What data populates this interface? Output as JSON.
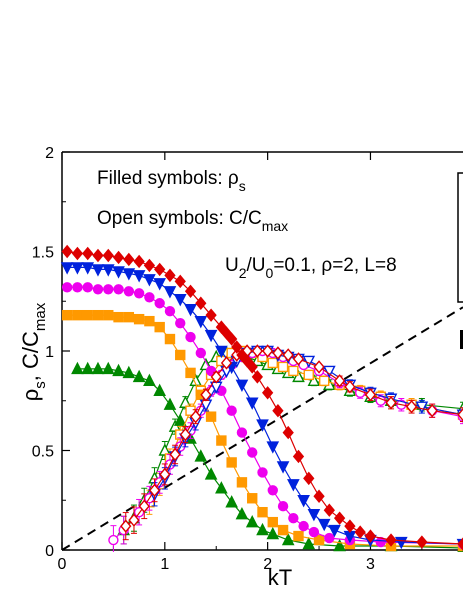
{
  "chart_data": {
    "type": "line",
    "xlabel": "kT",
    "ylabel": {
      "main": "ρ",
      "sub1": "s",
      "mid": ", C/C",
      "sub2": "max"
    },
    "xlim": [
      0,
      3.9
    ],
    "ylim": [
      0,
      2
    ],
    "xticks": [
      0,
      1,
      2,
      3
    ],
    "yticks": [
      0,
      0.5,
      1,
      1.5,
      2
    ],
    "ytick_labels": [
      "0",
      "0.5",
      "1",
      "1.5",
      "2"
    ],
    "grid": false,
    "annotations": {
      "filled": {
        "text": "Filled symbols: ρ",
        "sub": "s"
      },
      "open": {
        "text": "Open symbols: C/C",
        "sub": "max"
      },
      "params": {
        "pre": "U",
        "sub": "2",
        "mid": "/U",
        "sub2": "0",
        "post": "=0.1, ρ=2, L=8"
      }
    },
    "reference_line": {
      "style": "dashed",
      "points": [
        [
          0,
          0
        ],
        [
          3.9,
          1.22
        ]
      ]
    },
    "series": [
      {
        "color": "#dd0000",
        "marker": "diamond",
        "rho": [
          [
            0.05,
            1.5
          ],
          [
            0.15,
            1.49
          ],
          [
            0.25,
            1.49
          ],
          [
            0.35,
            1.48
          ],
          [
            0.45,
            1.48
          ],
          [
            0.55,
            1.47
          ],
          [
            0.65,
            1.46
          ],
          [
            0.75,
            1.45
          ],
          [
            0.85,
            1.43
          ],
          [
            0.95,
            1.41
          ],
          [
            1.05,
            1.38
          ],
          [
            1.15,
            1.35
          ],
          [
            1.25,
            1.3
          ],
          [
            1.35,
            1.24
          ],
          [
            1.45,
            1.18
          ],
          [
            1.55,
            1.12
          ],
          [
            1.6,
            1.09
          ],
          [
            1.65,
            1.06
          ],
          [
            1.7,
            1.02
          ],
          [
            1.75,
            0.98
          ],
          [
            1.8,
            0.95
          ],
          [
            1.85,
            0.92
          ],
          [
            1.9,
            0.87
          ],
          [
            2.0,
            0.79
          ],
          [
            2.1,
            0.7
          ],
          [
            2.2,
            0.59
          ],
          [
            2.3,
            0.47
          ],
          [
            2.4,
            0.36
          ],
          [
            2.5,
            0.27
          ],
          [
            2.6,
            0.2
          ],
          [
            2.7,
            0.16
          ],
          [
            2.8,
            0.12
          ],
          [
            2.9,
            0.09
          ],
          [
            3.0,
            0.07
          ],
          [
            3.2,
            0.05
          ],
          [
            3.5,
            0.04
          ],
          [
            3.9,
            0.03
          ]
        ],
        "c": [
          [
            0.62,
            0.12
          ],
          [
            0.7,
            0.15
          ],
          [
            0.8,
            0.22
          ],
          [
            0.9,
            0.3
          ],
          [
            1.0,
            0.38
          ],
          [
            1.1,
            0.48
          ],
          [
            1.2,
            0.58
          ],
          [
            1.3,
            0.67
          ],
          [
            1.4,
            0.78
          ],
          [
            1.5,
            0.87
          ],
          [
            1.6,
            0.94
          ],
          [
            1.7,
            0.98
          ],
          [
            1.8,
            1.0
          ],
          [
            1.9,
            1.0
          ],
          [
            2.0,
            1.0
          ],
          [
            2.1,
            0.99
          ],
          [
            2.2,
            0.98
          ],
          [
            2.3,
            0.96
          ],
          [
            2.5,
            0.92
          ],
          [
            2.7,
            0.85
          ],
          [
            2.8,
            0.82
          ],
          [
            3.0,
            0.78
          ],
          [
            3.2,
            0.74
          ],
          [
            3.4,
            0.72
          ],
          [
            3.6,
            0.7
          ],
          [
            3.9,
            0.68
          ]
        ]
      },
      {
        "color": "#0022dd",
        "marker": "triangle-down",
        "rho": [
          [
            0.05,
            1.42
          ],
          [
            0.15,
            1.42
          ],
          [
            0.25,
            1.42
          ],
          [
            0.35,
            1.41
          ],
          [
            0.45,
            1.41
          ],
          [
            0.55,
            1.4
          ],
          [
            0.65,
            1.39
          ],
          [
            0.75,
            1.38
          ],
          [
            0.85,
            1.36
          ],
          [
            0.95,
            1.34
          ],
          [
            1.05,
            1.3
          ],
          [
            1.15,
            1.26
          ],
          [
            1.25,
            1.21
          ],
          [
            1.35,
            1.15
          ],
          [
            1.45,
            1.08
          ],
          [
            1.55,
            1.0
          ],
          [
            1.65,
            0.92
          ],
          [
            1.75,
            0.83
          ],
          [
            1.85,
            0.74
          ],
          [
            1.95,
            0.63
          ],
          [
            2.05,
            0.52
          ],
          [
            2.15,
            0.42
          ],
          [
            2.25,
            0.33
          ],
          [
            2.35,
            0.25
          ],
          [
            2.45,
            0.18
          ],
          [
            2.55,
            0.13
          ],
          [
            2.65,
            0.1
          ],
          [
            2.8,
            0.07
          ],
          [
            3.0,
            0.05
          ],
          [
            3.3,
            0.04
          ],
          [
            3.9,
            0.03
          ]
        ],
        "c": [
          [
            0.9,
            0.28
          ],
          [
            1.0,
            0.36
          ],
          [
            1.1,
            0.47
          ],
          [
            1.2,
            0.56
          ],
          [
            1.3,
            0.64
          ],
          [
            1.4,
            0.73
          ],
          [
            1.5,
            0.82
          ],
          [
            1.6,
            0.9
          ],
          [
            1.7,
            0.95
          ],
          [
            1.8,
            0.99
          ],
          [
            1.9,
            1.0
          ],
          [
            2.0,
            1.0
          ],
          [
            2.1,
            0.98
          ],
          [
            2.2,
            0.97
          ],
          [
            2.3,
            0.96
          ],
          [
            2.4,
            0.95
          ],
          [
            2.6,
            0.9
          ],
          [
            2.8,
            0.83
          ],
          [
            3.0,
            0.79
          ],
          [
            3.2,
            0.76
          ],
          [
            3.5,
            0.72
          ],
          [
            3.9,
            0.68
          ]
        ]
      },
      {
        "color": "#ee00ee",
        "marker": "circle",
        "rho": [
          [
            0.05,
            1.32
          ],
          [
            0.15,
            1.32
          ],
          [
            0.25,
            1.32
          ],
          [
            0.35,
            1.31
          ],
          [
            0.45,
            1.31
          ],
          [
            0.55,
            1.31
          ],
          [
            0.65,
            1.3
          ],
          [
            0.75,
            1.29
          ],
          [
            0.85,
            1.27
          ],
          [
            0.95,
            1.24
          ],
          [
            1.05,
            1.2
          ],
          [
            1.15,
            1.14
          ],
          [
            1.25,
            1.07
          ],
          [
            1.35,
            0.99
          ],
          [
            1.45,
            0.9
          ],
          [
            1.55,
            0.8
          ],
          [
            1.65,
            0.7
          ],
          [
            1.75,
            0.59
          ],
          [
            1.85,
            0.49
          ],
          [
            1.95,
            0.39
          ],
          [
            2.05,
            0.3
          ],
          [
            2.15,
            0.22
          ],
          [
            2.25,
            0.16
          ],
          [
            2.35,
            0.12
          ],
          [
            2.45,
            0.09
          ],
          [
            2.6,
            0.06
          ],
          [
            2.8,
            0.05
          ],
          [
            3.1,
            0.04
          ],
          [
            3.9,
            0.03
          ]
        ],
        "c": [
          [
            0.5,
            0.05
          ],
          [
            0.6,
            0.1
          ],
          [
            0.75,
            0.19
          ],
          [
            0.85,
            0.26
          ],
          [
            0.95,
            0.34
          ],
          [
            1.05,
            0.43
          ],
          [
            1.15,
            0.52
          ],
          [
            1.25,
            0.6
          ],
          [
            1.35,
            0.7
          ],
          [
            1.45,
            0.8
          ],
          [
            1.55,
            0.88
          ],
          [
            1.65,
            0.93
          ],
          [
            1.75,
            0.97
          ],
          [
            1.85,
            0.99
          ],
          [
            1.95,
            1.0
          ],
          [
            2.05,
            0.99
          ],
          [
            2.15,
            0.97
          ],
          [
            2.25,
            0.95
          ],
          [
            2.35,
            0.93
          ],
          [
            2.5,
            0.9
          ],
          [
            2.7,
            0.84
          ],
          [
            2.9,
            0.79
          ],
          [
            3.1,
            0.75
          ],
          [
            3.3,
            0.73
          ],
          [
            3.6,
            0.7
          ],
          [
            3.9,
            0.67
          ]
        ]
      },
      {
        "color": "#ff9900",
        "marker": "square",
        "rho": [
          [
            0.05,
            1.18
          ],
          [
            0.15,
            1.18
          ],
          [
            0.25,
            1.18
          ],
          [
            0.35,
            1.18
          ],
          [
            0.45,
            1.18
          ],
          [
            0.55,
            1.17
          ],
          [
            0.65,
            1.17
          ],
          [
            0.75,
            1.16
          ],
          [
            0.85,
            1.15
          ],
          [
            0.95,
            1.12
          ],
          [
            1.05,
            1.06
          ],
          [
            1.15,
            0.98
          ],
          [
            1.25,
            0.89
          ],
          [
            1.35,
            0.78
          ],
          [
            1.45,
            0.67
          ],
          [
            1.55,
            0.55
          ],
          [
            1.65,
            0.44
          ],
          [
            1.75,
            0.34
          ],
          [
            1.85,
            0.26
          ],
          [
            1.95,
            0.19
          ],
          [
            2.05,
            0.14
          ],
          [
            2.15,
            0.1
          ],
          [
            2.3,
            0.07
          ],
          [
            2.5,
            0.05
          ],
          [
            2.8,
            0.03
          ],
          [
            3.2,
            0.02
          ],
          [
            3.9,
            0.02
          ]
        ],
        "c": [
          [
            0.85,
            0.24
          ],
          [
            0.95,
            0.33
          ],
          [
            1.05,
            0.46
          ],
          [
            1.15,
            0.58
          ],
          [
            1.25,
            0.7
          ],
          [
            1.35,
            0.8
          ],
          [
            1.45,
            0.88
          ],
          [
            1.55,
            0.95
          ],
          [
            1.65,
            0.99
          ],
          [
            1.75,
            1.0
          ],
          [
            1.85,
            0.99
          ],
          [
            1.95,
            0.97
          ],
          [
            2.05,
            0.94
          ],
          [
            2.15,
            0.92
          ],
          [
            2.25,
            0.9
          ],
          [
            2.4,
            0.88
          ],
          [
            2.55,
            0.85
          ],
          [
            2.7,
            0.83
          ],
          [
            2.9,
            0.8
          ],
          [
            3.1,
            0.77
          ],
          [
            3.4,
            0.73
          ],
          [
            3.9,
            0.68
          ]
        ]
      },
      {
        "color": "#008800",
        "marker": "triangle-up",
        "rho": [
          [
            0.15,
            0.91
          ],
          [
            0.25,
            0.91
          ],
          [
            0.35,
            0.91
          ],
          [
            0.45,
            0.91
          ],
          [
            0.55,
            0.9
          ],
          [
            0.65,
            0.89
          ],
          [
            0.75,
            0.87
          ],
          [
            0.85,
            0.85
          ],
          [
            0.95,
            0.8
          ],
          [
            1.05,
            0.73
          ],
          [
            1.15,
            0.65
          ],
          [
            1.25,
            0.56
          ],
          [
            1.35,
            0.47
          ],
          [
            1.45,
            0.38
          ],
          [
            1.55,
            0.31
          ],
          [
            1.65,
            0.24
          ],
          [
            1.75,
            0.18
          ],
          [
            1.85,
            0.14
          ],
          [
            1.95,
            0.1
          ],
          [
            2.05,
            0.08
          ],
          [
            2.2,
            0.05
          ],
          [
            2.4,
            0.03
          ],
          [
            2.7,
            0.02
          ],
          [
            3.2,
            0.02
          ],
          [
            3.9,
            0.01
          ]
        ],
        "c": [
          [
            0.6,
            0.1
          ],
          [
            0.7,
            0.16
          ],
          [
            0.8,
            0.25
          ],
          [
            0.9,
            0.36
          ],
          [
            1.0,
            0.5
          ],
          [
            1.1,
            0.62
          ],
          [
            1.2,
            0.74
          ],
          [
            1.3,
            0.85
          ],
          [
            1.4,
            0.93
          ],
          [
            1.5,
            0.97
          ],
          [
            1.6,
            0.99
          ],
          [
            1.7,
            0.99
          ],
          [
            1.8,
            0.97
          ],
          [
            1.9,
            0.95
          ],
          [
            2.0,
            0.93
          ],
          [
            2.1,
            0.91
          ],
          [
            2.2,
            0.89
          ],
          [
            2.3,
            0.87
          ],
          [
            2.45,
            0.85
          ],
          [
            2.6,
            0.83
          ],
          [
            2.8,
            0.8
          ],
          [
            3.0,
            0.77
          ],
          [
            3.2,
            0.75
          ],
          [
            3.5,
            0.73
          ],
          [
            3.9,
            0.71
          ]
        ]
      }
    ]
  }
}
